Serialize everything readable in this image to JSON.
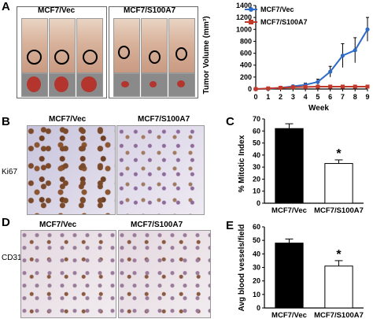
{
  "panels": {
    "a": "A",
    "b": "B",
    "c": "C",
    "d": "D",
    "e": "E"
  },
  "groups": {
    "vec": "MCF7/Vec",
    "s100a7": "MCF7/S100A7"
  },
  "side_labels": {
    "ki67": "Ki67",
    "cd31": "CD31"
  },
  "chart_data": [
    {
      "type": "line",
      "xlabel": "Week",
      "ylabel": "Tumor Volume (mm³)",
      "x": [
        0,
        1,
        2,
        3,
        4,
        5,
        6,
        7,
        8,
        9
      ],
      "xlim": [
        0,
        9
      ],
      "ylim": [
        0,
        1400
      ],
      "yticks": [
        0,
        200,
        400,
        600,
        800,
        1000,
        1200,
        1400
      ],
      "legend_position": "top-left",
      "series": [
        {
          "name": "MCF7/Vec",
          "color": "#2e6bc6",
          "values": [
            0,
            5,
            20,
            45,
            70,
            120,
            290,
            560,
            650,
            1000
          ],
          "errors": [
            0,
            5,
            10,
            20,
            30,
            45,
            90,
            200,
            210,
            200
          ]
        },
        {
          "name": "MCF7/S100A7",
          "color": "#c0392b",
          "values": [
            0,
            10,
            20,
            30,
            35,
            40,
            40,
            40,
            40,
            40
          ],
          "errors": [
            0,
            3,
            4,
            5,
            5,
            5,
            5,
            5,
            5,
            5
          ]
        }
      ]
    },
    {
      "type": "bar",
      "ylabel": "% Mitotic Index",
      "categories": [
        "MCF7/Vec",
        "MCF7/S100A7"
      ],
      "values": [
        62,
        33
      ],
      "errors": [
        4,
        3
      ],
      "ylim": [
        0,
        70
      ],
      "yticks": [
        0,
        10,
        20,
        30,
        40,
        50,
        60,
        70
      ],
      "fills": [
        "#000000",
        "#ffffff"
      ],
      "annotation": "*"
    },
    {
      "type": "bar",
      "ylabel": "Avg blood vessels/field",
      "categories": [
        "MCF7/Vec",
        "MCF7/S100A7"
      ],
      "values": [
        48,
        31
      ],
      "errors": [
        3,
        4
      ],
      "ylim": [
        0,
        60
      ],
      "yticks": [
        0,
        10,
        20,
        30,
        40,
        50,
        60
      ],
      "fills": [
        "#000000",
        "#ffffff"
      ],
      "annotation": "*"
    }
  ]
}
